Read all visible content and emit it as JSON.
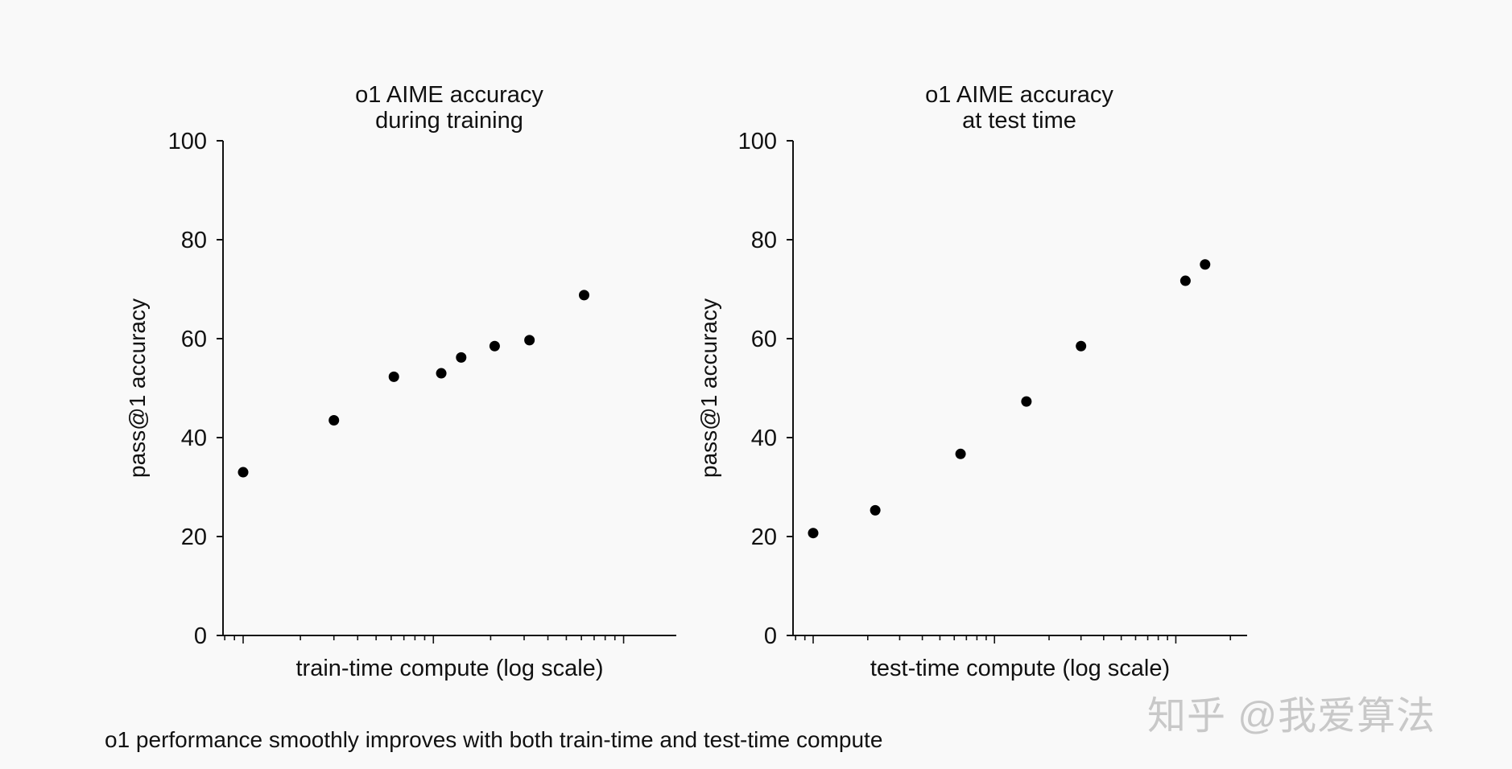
{
  "chart_data": [
    {
      "type": "scatter",
      "title_lines": [
        "o1 AIME accuracy",
        "during training"
      ],
      "xlabel": "train-time compute (log scale)",
      "ylabel": "pass@1 accuracy",
      "ylim": [
        0,
        100
      ],
      "yticks": [
        "0",
        "20",
        "40",
        "60",
        "80",
        "100"
      ],
      "x_scale": "log",
      "x_ticks_labeled": false,
      "grid": false,
      "legend": "none",
      "color": "#000000",
      "points": [
        {
          "x": 1.0,
          "y": 33
        },
        {
          "x": 3.0,
          "y": 43.5
        },
        {
          "x": 6.2,
          "y": 52.3
        },
        {
          "x": 11.0,
          "y": 53
        },
        {
          "x": 14.0,
          "y": 56.2
        },
        {
          "x": 21.0,
          "y": 58.5
        },
        {
          "x": 32.0,
          "y": 59.7
        },
        {
          "x": 62.0,
          "y": 68.8
        }
      ]
    },
    {
      "type": "scatter",
      "title_lines": [
        "o1 AIME accuracy",
        "at test time"
      ],
      "xlabel": "test-time compute (log scale)",
      "ylabel": "pass@1 accuracy",
      "ylim": [
        0,
        100
      ],
      "yticks": [
        "0",
        "20",
        "40",
        "60",
        "80",
        "100"
      ],
      "x_scale": "log",
      "x_ticks_labeled": false,
      "grid": false,
      "legend": "none",
      "color": "#000000",
      "points": [
        {
          "x": 1.0,
          "y": 20.7
        },
        {
          "x": 2.2,
          "y": 25.3
        },
        {
          "x": 6.5,
          "y": 36.7
        },
        {
          "x": 15.0,
          "y": 47.3
        },
        {
          "x": 30.0,
          "y": 58.5
        },
        {
          "x": 113.0,
          "y": 71.7
        },
        {
          "x": 145.0,
          "y": 75.0
        }
      ]
    }
  ],
  "caption": "o1 performance smoothly improves with both train-time and test-time compute",
  "watermark": "知乎 @我爱算法"
}
